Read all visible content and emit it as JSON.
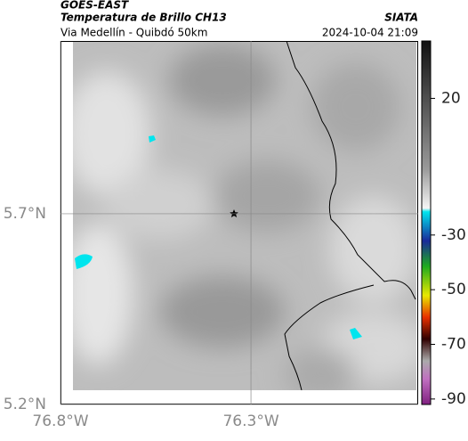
{
  "header": {
    "title": "GOES-EAST",
    "subtitle": "Temperatura de Brillo CH13",
    "source": "SIATA",
    "region": "Via Medellín - Quibdó 50km",
    "datetime": "2024-10-04 21:09"
  },
  "map": {
    "xlim": [
      -76.8,
      -75.861
    ],
    "ylim": [
      5.2,
      6.153
    ],
    "xticks": [
      {
        "value": -76.8,
        "label": "76.8°W"
      },
      {
        "value": -76.3,
        "label": "76.3°W"
      }
    ],
    "yticks": [
      {
        "value": 5.2,
        "label": "5.2°N"
      },
      {
        "value": 5.7,
        "label": "5.7°N"
      }
    ],
    "grid": true,
    "colorbar": {
      "lim": [
        -92,
        41
      ],
      "ticks": [
        20,
        -30,
        -50,
        -70,
        -90
      ]
    }
  }
}
